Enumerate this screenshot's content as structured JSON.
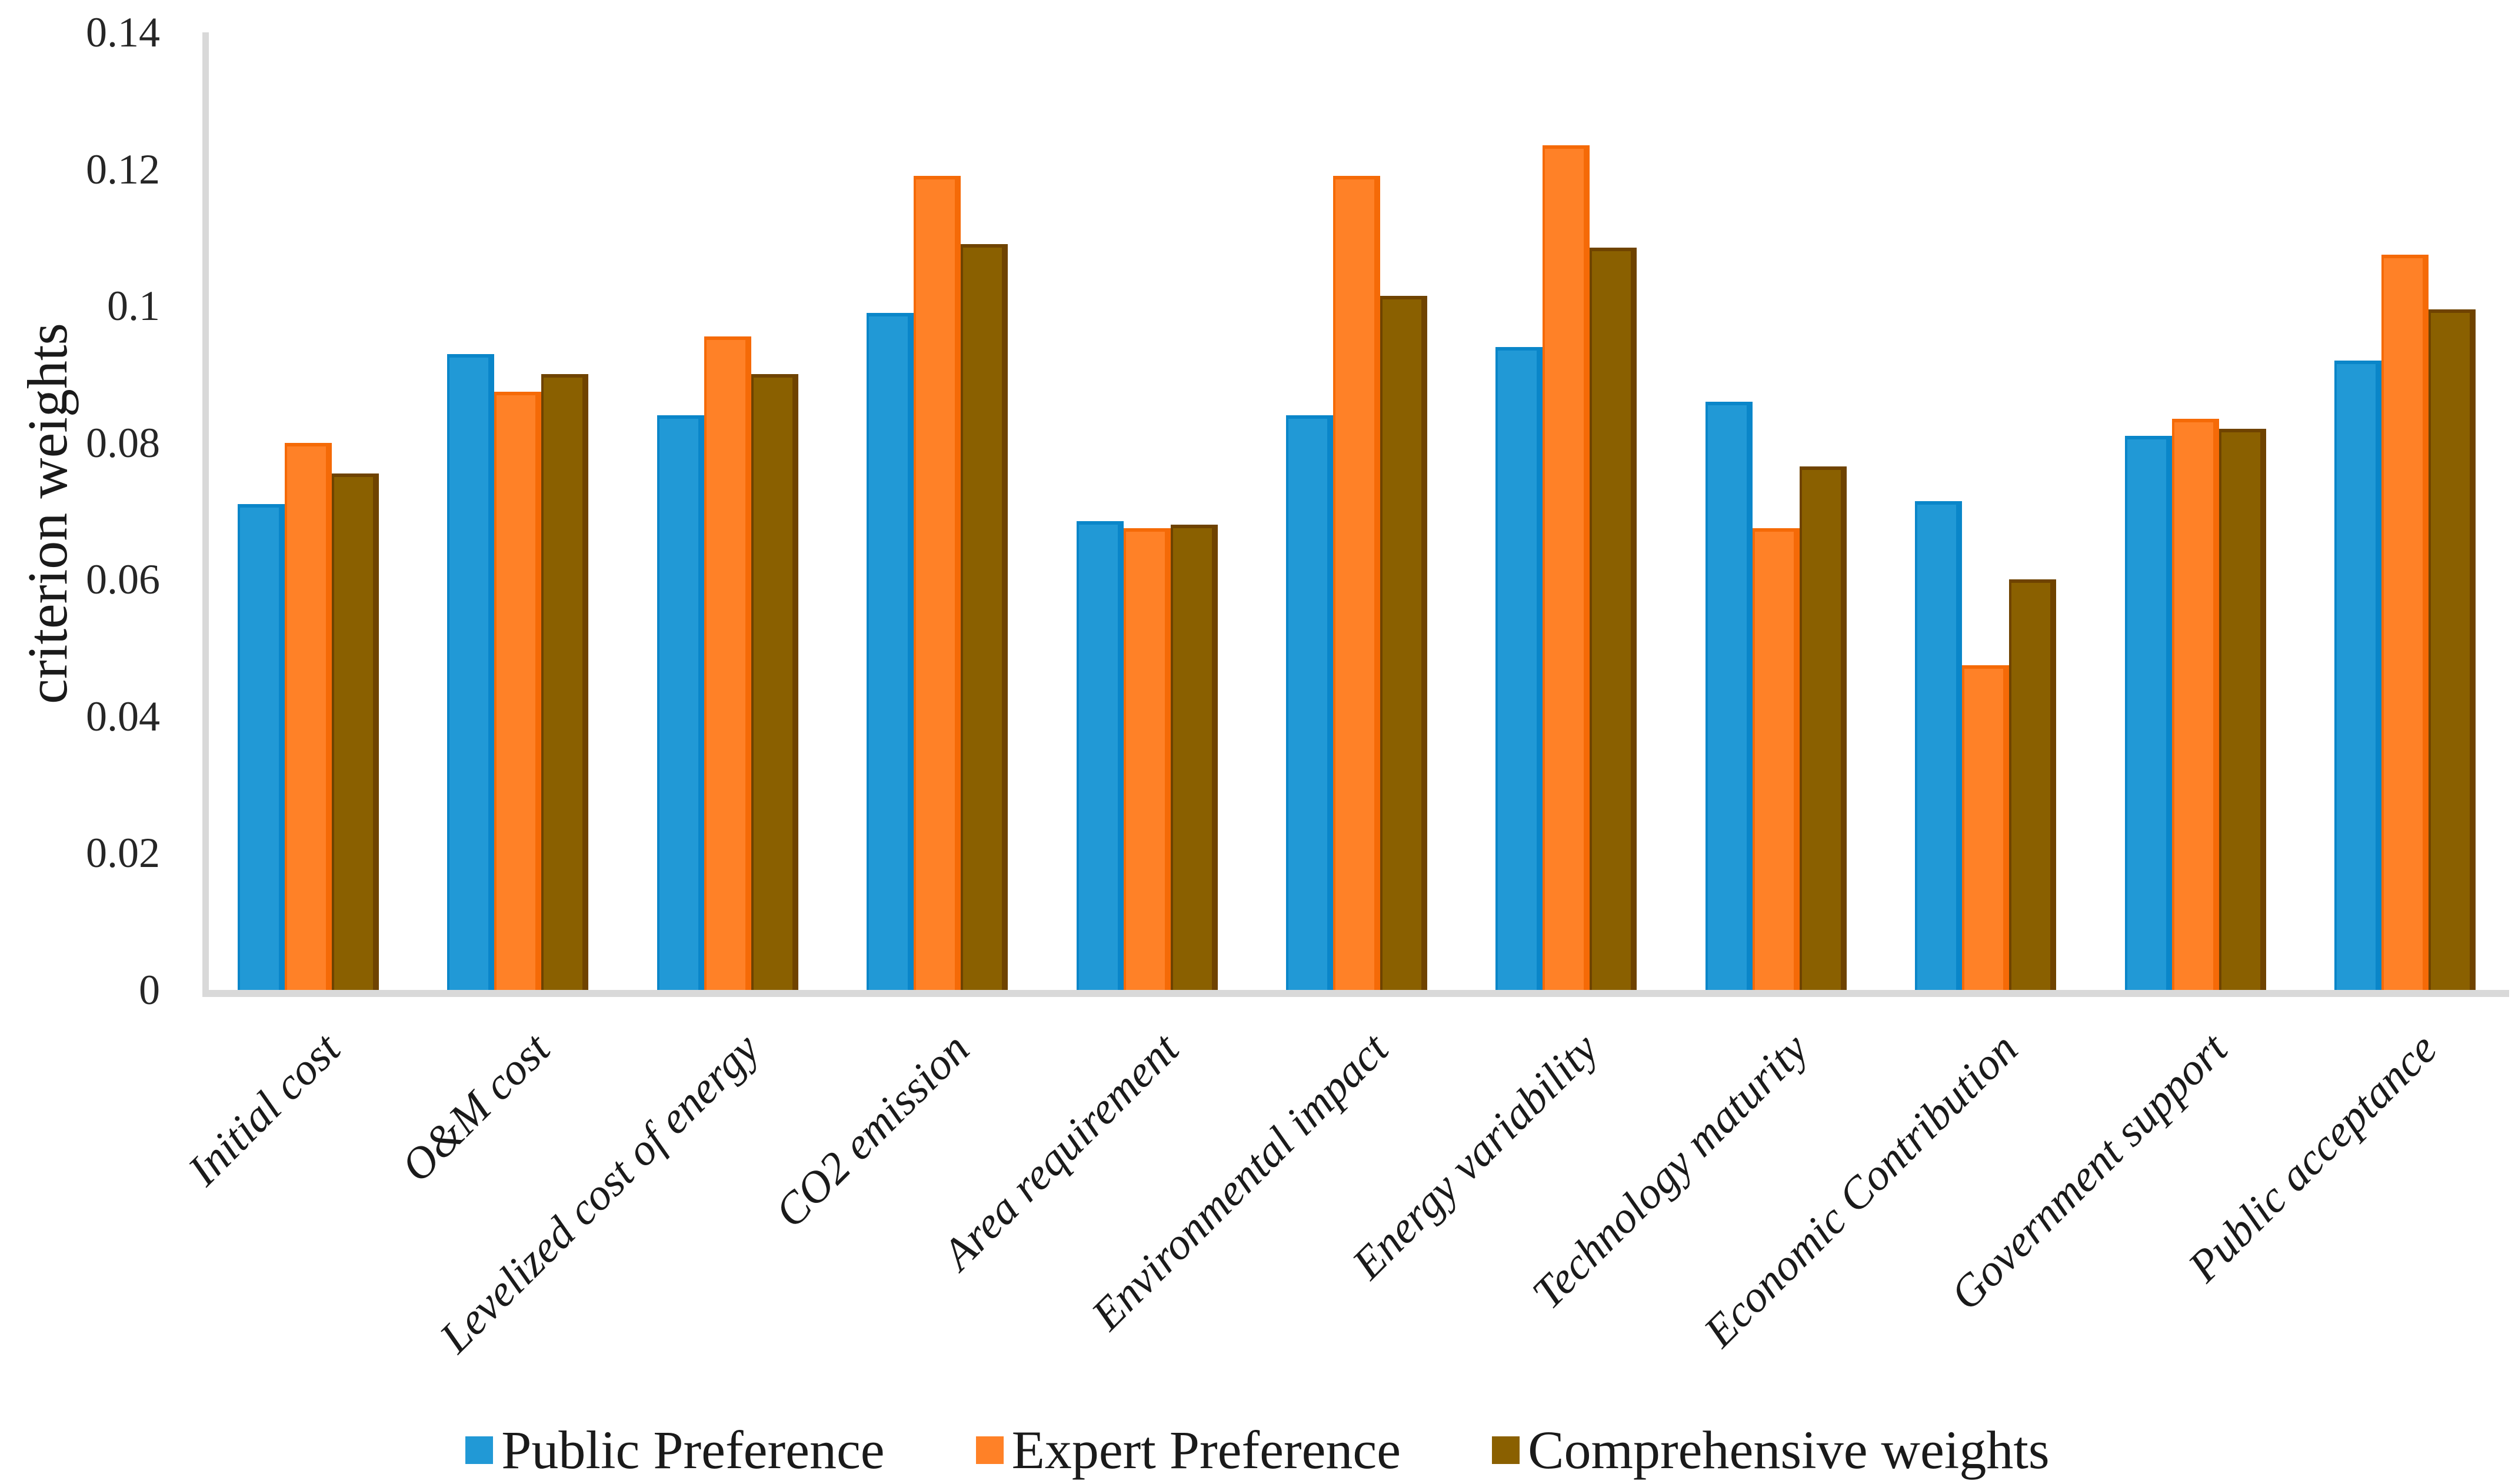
{
  "chart_data": {
    "type": "bar",
    "title": "",
    "xlabel": "",
    "ylabel": "criterion weights",
    "ylim": [
      0,
      0.14
    ],
    "ytick_step": 0.02,
    "ytick_labels": [
      "0",
      "0.02",
      "0.04",
      "0.06",
      "0.08",
      "0.1",
      "0.12",
      "0.14"
    ],
    "grid": "off",
    "legend_position": "bottom",
    "axis_color": "#d9d9d9",
    "categories": [
      "Initial cost",
      "O&M cost",
      "Levelized cost of energy",
      "CO2 emission",
      "Area requirement",
      "Environmental impact",
      "Energy variability",
      "Technology maturity",
      "Economic Contribution",
      "Government support",
      "Public acceptance"
    ],
    "series": [
      {
        "name": "Public Preference",
        "color": "#2199d6",
        "edge_color": "#0a86c9",
        "values": [
          0.071,
          0.093,
          0.084,
          0.099,
          0.0685,
          0.084,
          0.094,
          0.086,
          0.0715,
          0.081,
          0.092
        ]
      },
      {
        "name": "Expert Preference",
        "color": "#ff8127",
        "edge_color": "#f56a07",
        "values": [
          0.08,
          0.0875,
          0.0955,
          0.119,
          0.0675,
          0.119,
          0.1235,
          0.0675,
          0.0475,
          0.0835,
          0.1075
        ]
      },
      {
        "name": "Comprehensive weights",
        "color": "#8a6000",
        "edge_color": "#6f4300",
        "values": [
          0.0755,
          0.09,
          0.09,
          0.109,
          0.068,
          0.1015,
          0.1085,
          0.0765,
          0.06,
          0.082,
          0.0995
        ]
      }
    ]
  }
}
